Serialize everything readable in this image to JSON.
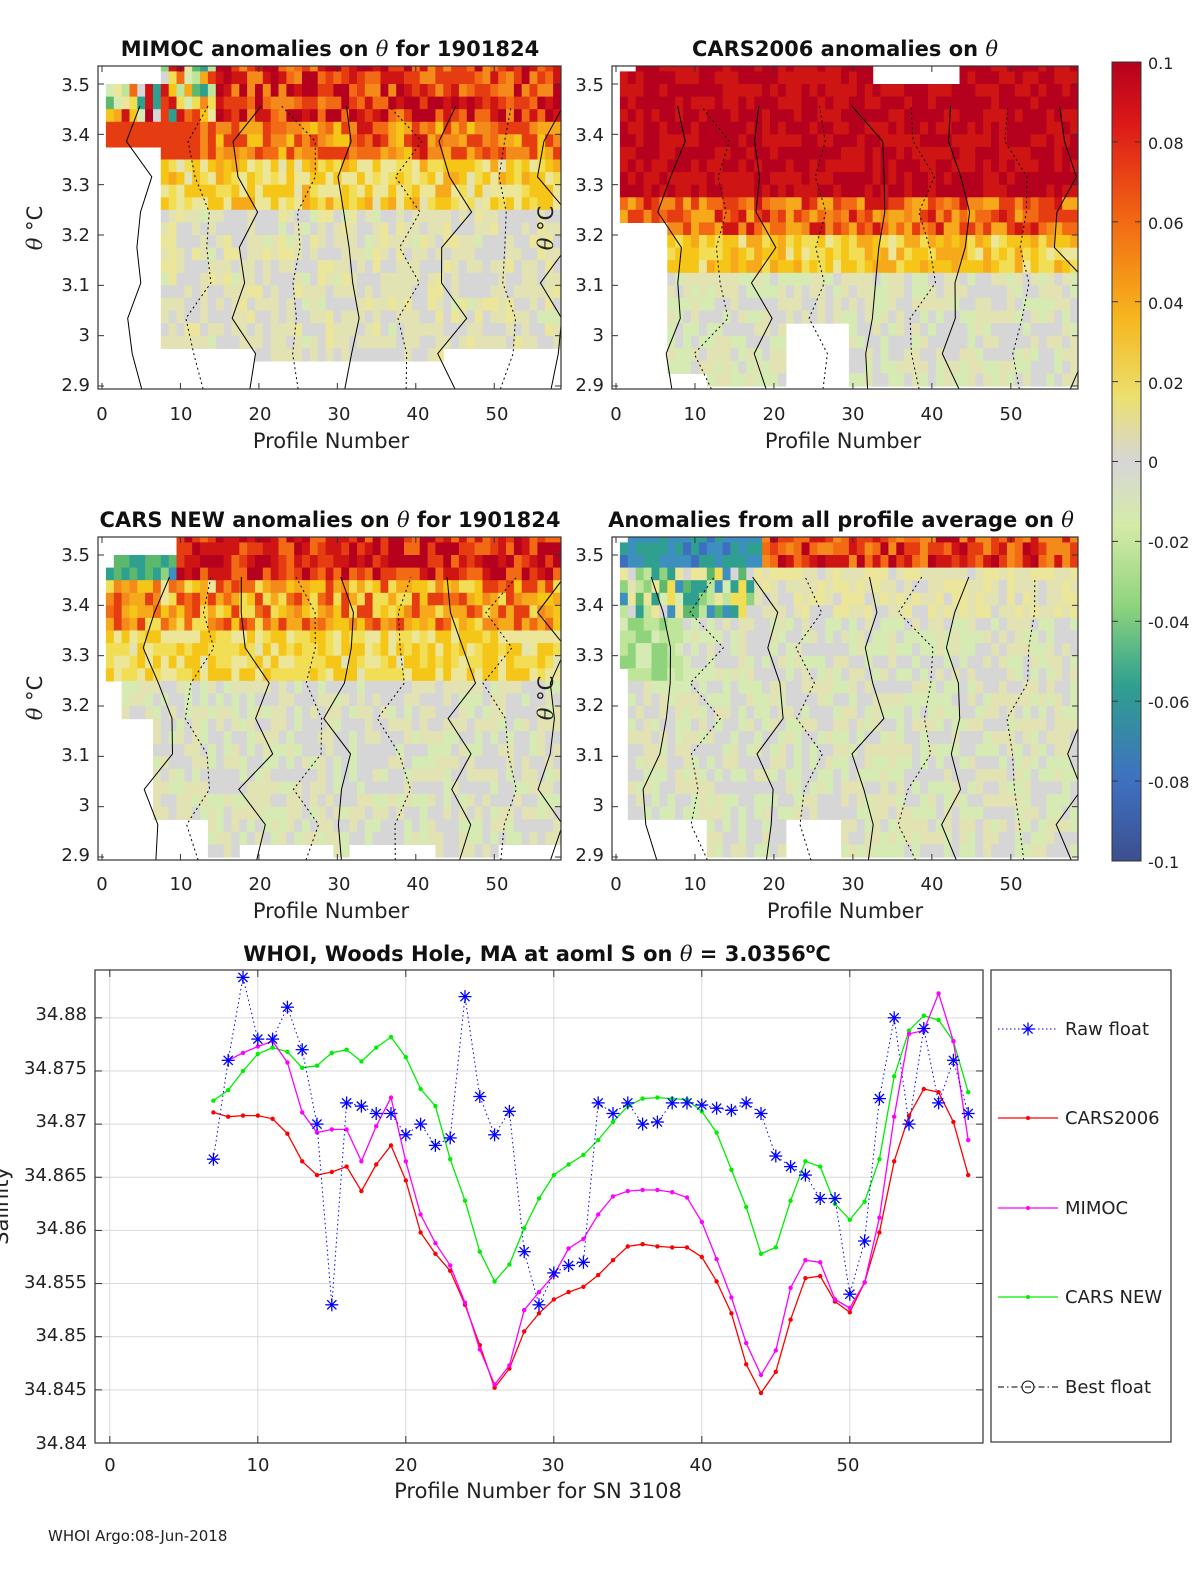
{
  "colorbar": {
    "ticks": [
      "0.1",
      "0.08",
      "0.06",
      "0.04",
      "0.02",
      "0",
      "-0.02",
      "-0.04",
      "-0.06",
      "-0.08",
      "-0.1"
    ],
    "range": [
      -0.1,
      0.1
    ]
  },
  "colors": {
    "raw": "#0000ff",
    "cars2006": "#ff0000",
    "mimoc": "#ff00ff",
    "carsnew": "#00ee00",
    "best": "#000000"
  },
  "footer": "WHOI Argo:08-Jun-2018",
  "chart_data": [
    {
      "id": "p1",
      "type": "heatmap",
      "title_pre": "MIMOC anomalies on ",
      "title_sym": "θ",
      "title_post": "  for 1901824",
      "xlabel": "Profile Number",
      "ylabel_sym": "θ",
      "ylabel_unit": " °C",
      "xlim": [
        0,
        58
      ],
      "ylim": [
        2.9,
        3.55
      ],
      "xticks": [
        "0",
        "10",
        "20",
        "30",
        "40",
        "50"
      ],
      "yticks": [
        "3.5",
        "3.4",
        "3.3",
        "3.2",
        "3.1",
        "3",
        "2.9"
      ]
    },
    {
      "id": "p2",
      "type": "heatmap",
      "title_pre": "CARS2006 anomalies on ",
      "title_sym": "θ",
      "title_post": "",
      "xlabel": "Profile Number",
      "ylabel_sym": "θ",
      "ylabel_unit": " °C",
      "xlim": [
        0,
        58
      ],
      "ylim": [
        2.9,
        3.55
      ],
      "xticks": [
        "0",
        "10",
        "20",
        "30",
        "40",
        "50"
      ],
      "yticks": [
        "3.5",
        "3.4",
        "3.3",
        "3.2",
        "3.1",
        "3",
        "2.9"
      ]
    },
    {
      "id": "p3",
      "type": "heatmap",
      "title_pre": "CARS NEW anomalies on ",
      "title_sym": "θ",
      "title_post": " for 1901824",
      "xlabel": "Profile Number",
      "ylabel_sym": "θ",
      "ylabel_unit": " °C",
      "xlim": [
        0,
        58
      ],
      "ylim": [
        2.9,
        3.55
      ],
      "xticks": [
        "0",
        "10",
        "20",
        "30",
        "40",
        "50"
      ],
      "yticks": [
        "3.5",
        "3.4",
        "3.3",
        "3.2",
        "3.1",
        "3",
        "2.9"
      ]
    },
    {
      "id": "p4",
      "type": "heatmap",
      "title_pre": "Anomalies from all profile average on ",
      "title_sym": "θ",
      "title_post": "",
      "xlabel": "Profile Number",
      "ylabel_sym": "θ",
      "ylabel_unit": " °C",
      "xlim": [
        0,
        58
      ],
      "ylim": [
        2.9,
        3.55
      ],
      "xticks": [
        "0",
        "10",
        "20",
        "30",
        "40",
        "50"
      ],
      "yticks": [
        "3.5",
        "3.4",
        "3.3",
        "3.2",
        "3.1",
        "3",
        "2.9"
      ]
    },
    {
      "id": "p5",
      "type": "line",
      "title_pre": "WHOI, Woods Hole, MA at aoml S on ",
      "title_sym": "θ",
      "title_post": " = 3.0356",
      "title_sup": "o",
      "title_end": "C",
      "xlabel": "Profile Number for SN 3108",
      "ylabel": "Salinity",
      "xlim": [
        -1,
        59
      ],
      "ylim": [
        34.84,
        34.8845
      ],
      "xticks": [
        "0",
        "10",
        "20",
        "30",
        "40",
        "50"
      ],
      "yticks": [
        "34.88",
        "34.875",
        "34.87",
        "34.865",
        "34.86",
        "34.855",
        "34.85",
        "34.845",
        "34.84"
      ],
      "grid": true,
      "legend_position": "right-outside",
      "series": [
        {
          "name": "Raw float",
          "style": "dotted-star",
          "x": [
            7,
            8,
            9,
            10,
            11,
            12,
            13,
            14,
            15,
            16,
            17,
            18,
            19,
            20,
            21,
            22,
            23,
            24,
            25,
            26,
            27,
            28,
            29,
            30,
            31,
            32,
            33,
            34,
            35,
            36,
            37,
            38,
            39,
            40,
            41,
            42,
            43,
            44,
            45,
            46,
            47,
            48,
            49,
            50,
            51,
            52,
            53,
            54,
            55,
            56,
            57,
            58
          ],
          "y": [
            34.8667,
            34.876,
            34.8838,
            34.878,
            34.878,
            34.881,
            34.877,
            34.87,
            34.853,
            34.872,
            34.8717,
            34.871,
            34.871,
            34.869,
            34.87,
            34.868,
            34.8687,
            34.882,
            34.8726,
            34.869,
            34.8712,
            34.858,
            34.853,
            34.856,
            34.8567,
            34.857,
            34.872,
            34.871,
            34.872,
            34.87,
            34.8702,
            34.872,
            34.872,
            34.8718,
            34.8715,
            34.8713,
            34.872,
            34.871,
            34.867,
            34.866,
            34.8652,
            34.863,
            34.863,
            34.854,
            34.859,
            34.8724,
            34.88,
            34.87,
            34.879,
            34.872,
            34.876,
            34.871
          ]
        },
        {
          "name": "CARS2006",
          "style": "solid-dot",
          "x": [
            7,
            8,
            9,
            10,
            11,
            12,
            13,
            14,
            15,
            16,
            17,
            18,
            19,
            20,
            21,
            22,
            23,
            24,
            25,
            26,
            27,
            28,
            29,
            30,
            31,
            32,
            33,
            34,
            35,
            36,
            37,
            38,
            39,
            40,
            41,
            42,
            43,
            44,
            45,
            46,
            47,
            48,
            49,
            50,
            51,
            52,
            53,
            54,
            55,
            56,
            57,
            58
          ],
          "y": [
            34.8711,
            34.8707,
            34.8708,
            34.8708,
            34.8705,
            34.8691,
            34.8665,
            34.8652,
            34.8655,
            34.866,
            34.8637,
            34.8662,
            34.868,
            34.8647,
            34.8598,
            34.8578,
            34.8562,
            34.853,
            34.8492,
            34.8452,
            34.847,
            34.8505,
            34.8522,
            34.8535,
            34.8542,
            34.8547,
            34.8558,
            34.8572,
            34.8585,
            34.8587,
            34.8585,
            34.8584,
            34.8584,
            34.8575,
            34.8552,
            34.8522,
            34.8474,
            34.8447,
            34.8467,
            34.8516,
            34.8555,
            34.8557,
            34.8533,
            34.8523,
            34.8551,
            34.8598,
            34.8665,
            34.8708,
            34.8733,
            34.873,
            34.8702,
            34.8652
          ]
        },
        {
          "name": "MIMOC",
          "style": "solid-dot",
          "x": [
            8,
            9,
            10,
            11,
            12,
            13,
            14,
            15,
            16,
            17,
            18,
            19,
            20,
            21,
            22,
            23,
            24,
            25,
            26,
            27,
            28,
            29,
            30,
            31,
            32,
            33,
            34,
            35,
            36,
            37,
            38,
            39,
            40,
            41,
            42,
            43,
            44,
            45,
            46,
            47,
            48,
            49,
            50,
            51,
            52,
            53,
            54,
            55,
            56,
            57,
            58
          ],
          "y": [
            34.876,
            34.8767,
            34.8773,
            34.8778,
            34.8758,
            34.8711,
            34.8692,
            34.8695,
            34.8695,
            34.8665,
            34.8698,
            34.8725,
            34.8665,
            34.8615,
            34.8588,
            34.8567,
            34.8532,
            34.8488,
            34.8455,
            34.8473,
            34.8525,
            34.8542,
            34.8558,
            34.8583,
            34.8592,
            34.8615,
            34.8632,
            34.8637,
            34.8638,
            34.8638,
            34.8636,
            34.8631,
            34.8608,
            34.8573,
            34.8537,
            34.8494,
            34.8464,
            34.8487,
            34.8546,
            34.8572,
            34.857,
            34.8535,
            34.8527,
            34.8551,
            34.8612,
            34.8707,
            34.8785,
            34.8788,
            34.8823,
            34.8778,
            34.8685
          ]
        },
        {
          "name": "CARS NEW",
          "style": "solid-dot",
          "x": [
            7,
            8,
            9,
            10,
            11,
            12,
            13,
            14,
            15,
            16,
            17,
            18,
            19,
            20,
            21,
            22,
            23,
            24,
            25,
            26,
            27,
            28,
            29,
            30,
            31,
            32,
            33,
            34,
            35,
            36,
            37,
            38,
            39,
            40,
            41,
            42,
            43,
            44,
            45,
            46,
            47,
            48,
            49,
            50,
            51,
            52,
            53,
            54,
            55,
            56,
            57,
            58
          ],
          "y": [
            34.8722,
            34.8732,
            34.875,
            34.8766,
            34.8772,
            34.8768,
            34.8753,
            34.8755,
            34.8767,
            34.877,
            34.8759,
            34.8772,
            34.8782,
            34.8763,
            34.8733,
            34.8717,
            34.8667,
            34.8628,
            34.858,
            34.8552,
            34.8568,
            34.8602,
            34.863,
            34.8652,
            34.8662,
            34.8671,
            34.8685,
            34.8702,
            34.8717,
            34.8724,
            34.8725,
            34.8724,
            34.8723,
            34.8712,
            34.8692,
            34.8657,
            34.8622,
            34.8578,
            34.8584,
            34.8628,
            34.8665,
            34.866,
            34.8625,
            34.861,
            34.8627,
            34.8667,
            34.8745,
            34.8788,
            34.8802,
            34.8798,
            34.8778,
            34.873
          ]
        },
        {
          "name": "Best float",
          "style": "dashdot-circle",
          "x": [],
          "y": []
        }
      ]
    }
  ]
}
